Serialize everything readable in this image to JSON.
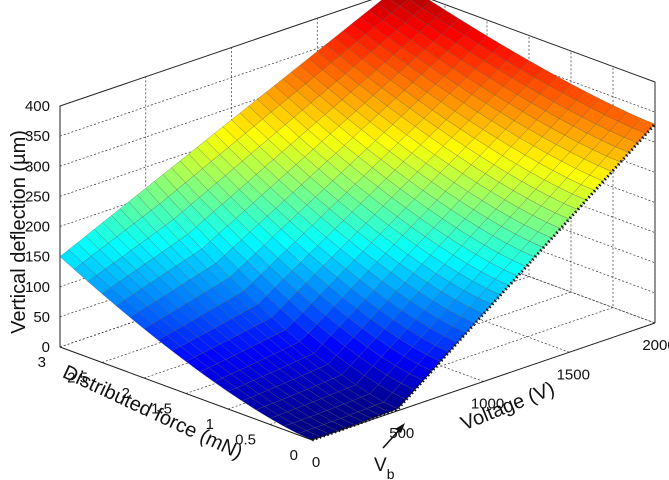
{
  "chart_data": {
    "type": "surface",
    "title": "",
    "xlabel": "Voltage (V)",
    "ylabel": "Distributed force (mN)",
    "zlabel": "Vertical deflection (µm)",
    "x_ticks": [
      "0",
      "500",
      "1000",
      "1500",
      "2000"
    ],
    "y_ticks": [
      "0",
      "0.5",
      "1",
      "1.5",
      "2",
      "2.5",
      "3"
    ],
    "z_ticks": [
      "0",
      "50",
      "100",
      "150",
      "200",
      "250",
      "300",
      "350",
      "400"
    ],
    "xlim": [
      0,
      2000
    ],
    "ylim": [
      0,
      3
    ],
    "zlim": [
      0,
      400
    ],
    "annotation": {
      "text": "V",
      "subscript": "b",
      "x": 500,
      "y": 0
    },
    "surface": {
      "x_range": [
        0,
        2000
      ],
      "y_range": [
        0,
        3
      ],
      "corners": {
        "x0_y0": 0,
        "x0_y3": 150,
        "x2000_y0": 330,
        "x2000_y3": 410
      },
      "colormap": "jet"
    },
    "grid": true
  }
}
